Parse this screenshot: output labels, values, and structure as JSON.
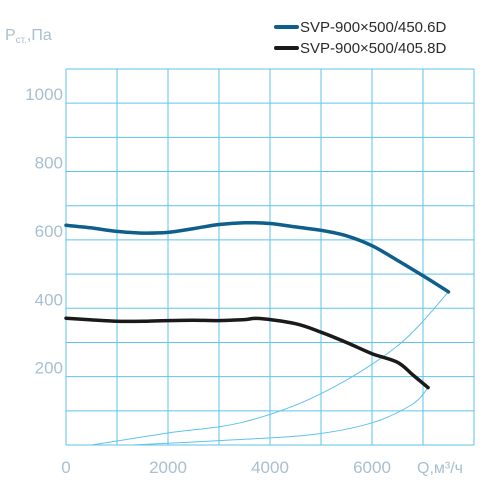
{
  "chart_data": {
    "type": "line",
    "ylabel_main": "P",
    "ylabel_sub": "ст.",
    "ylabel_unit": ",Па",
    "xlabel": "Q,м³/ч",
    "xlim": [
      0,
      8000
    ],
    "ylim": [
      0,
      1100
    ],
    "x_ticks": [
      0,
      2000,
      4000,
      6000
    ],
    "y_ticks": [
      200,
      400,
      600,
      800,
      1000
    ],
    "x_tick_labels": [
      "0",
      "2000",
      "4000",
      "6000"
    ],
    "y_tick_labels": [
      "200",
      "400",
      "600",
      "800",
      "1000"
    ],
    "grid": true,
    "legend_position": "top-right",
    "series": [
      {
        "name": "SVP-900×500/450.6D",
        "color": "#0e5f8c",
        "points": [
          [
            0,
            643
          ],
          [
            500,
            635
          ],
          [
            1000,
            625
          ],
          [
            1500,
            620
          ],
          [
            2000,
            622
          ],
          [
            2500,
            633
          ],
          [
            3000,
            645
          ],
          [
            3500,
            650
          ],
          [
            4000,
            648
          ],
          [
            4500,
            638
          ],
          [
            5000,
            628
          ],
          [
            5500,
            612
          ],
          [
            6000,
            583
          ],
          [
            6500,
            540
          ],
          [
            7000,
            495
          ],
          [
            7500,
            448
          ]
        ]
      },
      {
        "name": "SVP-900×500/405.8D",
        "color": "#1a1a1a",
        "points": [
          [
            0,
            371
          ],
          [
            500,
            366
          ],
          [
            1000,
            362
          ],
          [
            1500,
            362
          ],
          [
            2000,
            364
          ],
          [
            2500,
            365
          ],
          [
            3000,
            364
          ],
          [
            3500,
            367
          ],
          [
            3800,
            370
          ],
          [
            4500,
            355
          ],
          [
            5000,
            330
          ],
          [
            5500,
            300
          ],
          [
            6000,
            267
          ],
          [
            6500,
            242
          ],
          [
            6800,
            205
          ],
          [
            7100,
            168
          ]
        ]
      }
    ],
    "system_curves": [
      {
        "color": "#5fc3ea",
        "points": [
          [
            500,
            0
          ],
          [
            2000,
            35
          ],
          [
            3500,
            68
          ],
          [
            5000,
            150
          ],
          [
            6500,
            290
          ],
          [
            7500,
            448
          ]
        ]
      },
      {
        "color": "#5fc3ea",
        "points": [
          [
            1300,
            0
          ],
          [
            3000,
            13
          ],
          [
            4800,
            30
          ],
          [
            6000,
            65
          ],
          [
            6800,
            120
          ],
          [
            7100,
            168
          ]
        ]
      }
    ]
  }
}
